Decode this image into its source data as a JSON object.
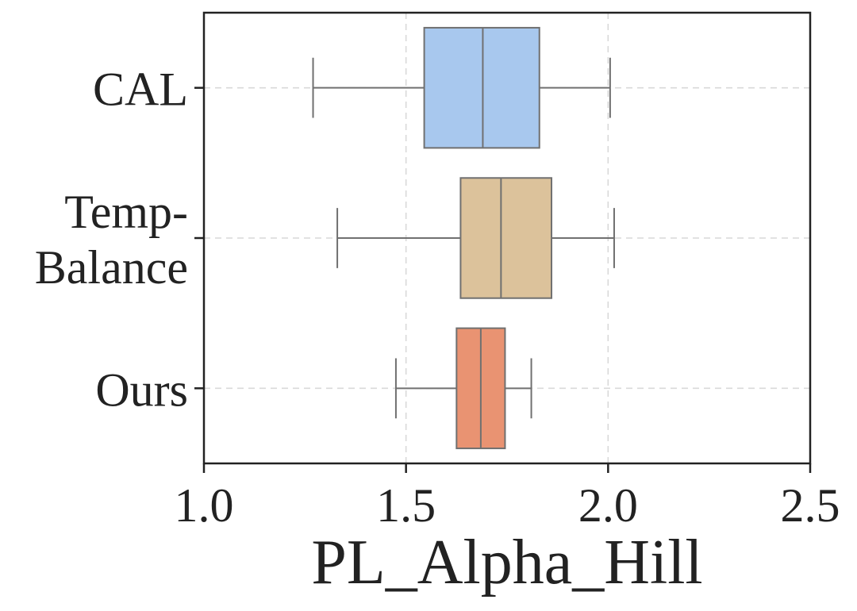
{
  "chart_data": {
    "type": "boxplot",
    "orientation": "horizontal",
    "xlabel": "PL_Alpha_Hill",
    "xlim": [
      1.0,
      2.5
    ],
    "xticks": [
      1.0,
      1.5,
      2.0,
      2.5
    ],
    "xtick_labels": [
      "1.0",
      "1.5",
      "2.0",
      "2.5"
    ],
    "grid": true,
    "series": [
      {
        "name": "CAL",
        "label_lines": [
          "CAL"
        ],
        "whisker_low": 1.27,
        "q1": 1.545,
        "median": 1.69,
        "q3": 1.83,
        "whisker_high": 2.005,
        "color": "#a8c8ee"
      },
      {
        "name": "Temp-Balance",
        "label_lines": [
          "Temp-",
          "Balance"
        ],
        "whisker_low": 1.33,
        "q1": 1.635,
        "median": 1.735,
        "q3": 1.86,
        "whisker_high": 2.015,
        "color": "#dcc29b"
      },
      {
        "name": "Ours",
        "label_lines": [
          "Ours"
        ],
        "whisker_low": 1.475,
        "q1": 1.625,
        "median": 1.685,
        "q3": 1.745,
        "whisker_high": 1.81,
        "color": "#e99372"
      }
    ]
  }
}
